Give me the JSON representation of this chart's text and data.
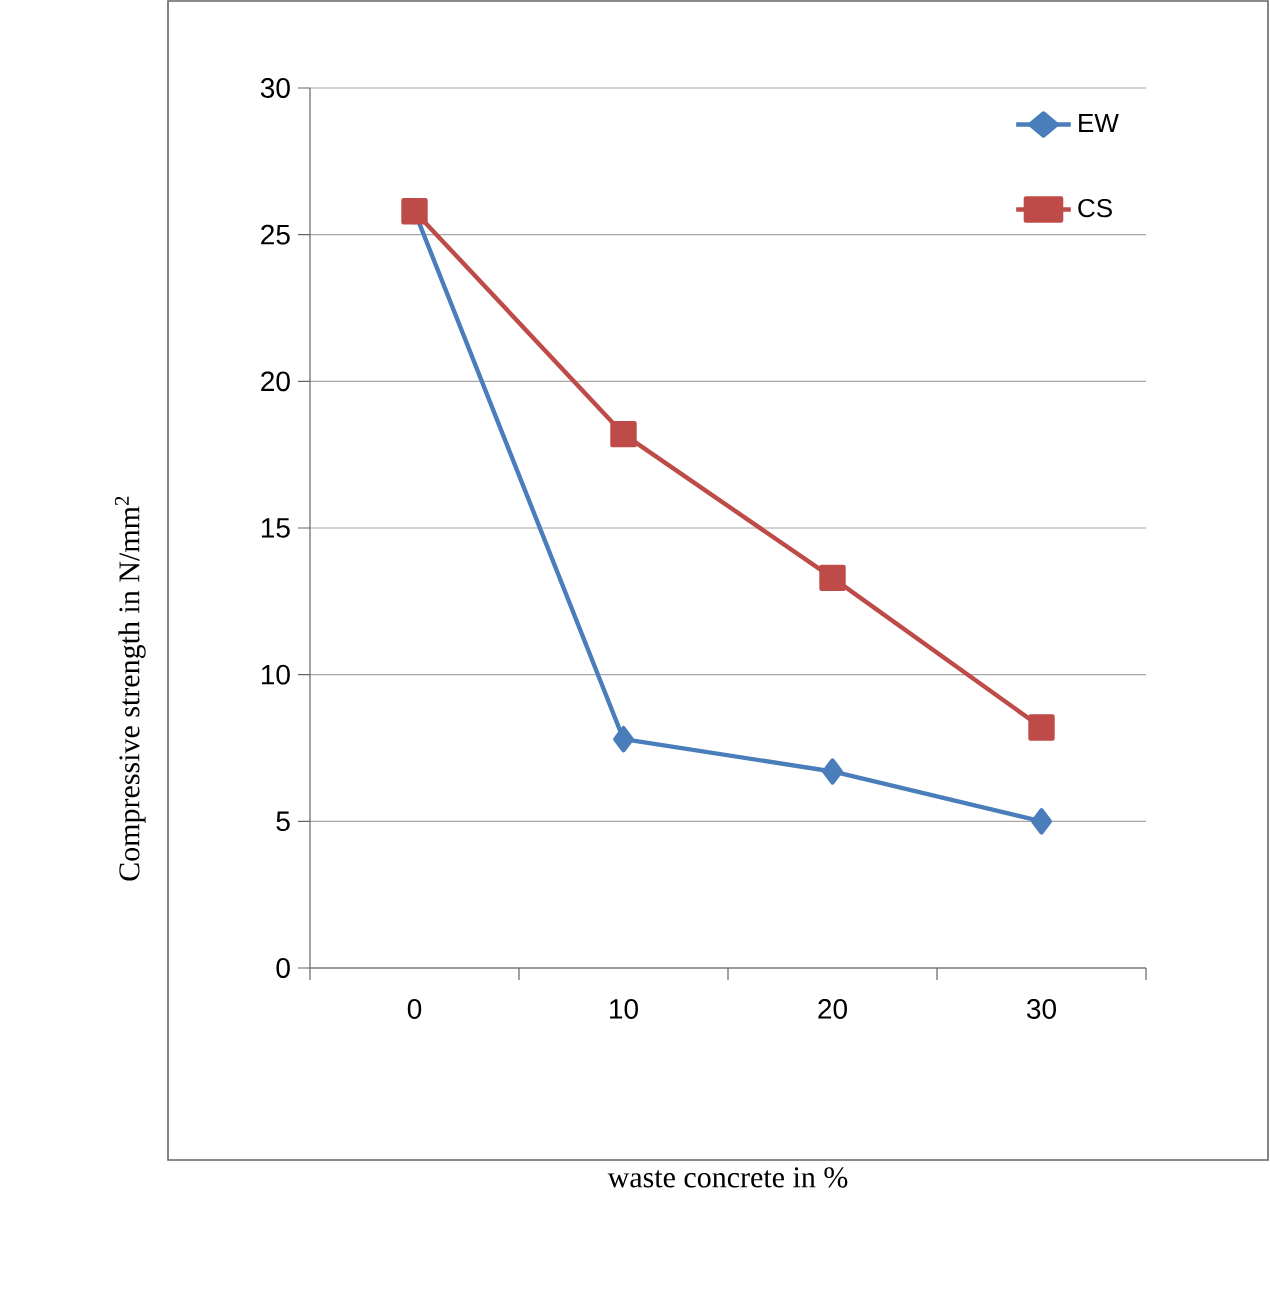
{
  "chart_data": {
    "type": "line",
    "xlabel": "waste concrete in %",
    "ylabel": "Compressive strength in N/mm$^{2}$",
    "categories": [
      "0",
      "10",
      "20",
      "30"
    ],
    "series": [
      {
        "name": "EW",
        "color": "#4a7ebb",
        "marker": "diamond",
        "values": [
          25.8,
          7.8,
          6.7,
          5.0
        ]
      },
      {
        "name": "CS",
        "color": "#be4b48",
        "marker": "square",
        "values": [
          25.8,
          18.2,
          13.3,
          8.2
        ]
      }
    ],
    "ylim": [
      0,
      30
    ],
    "yticks": [
      0,
      5,
      10,
      15,
      20,
      25,
      30
    ],
    "grid": "y",
    "legend": "top right",
    "line_style": "solid"
  }
}
